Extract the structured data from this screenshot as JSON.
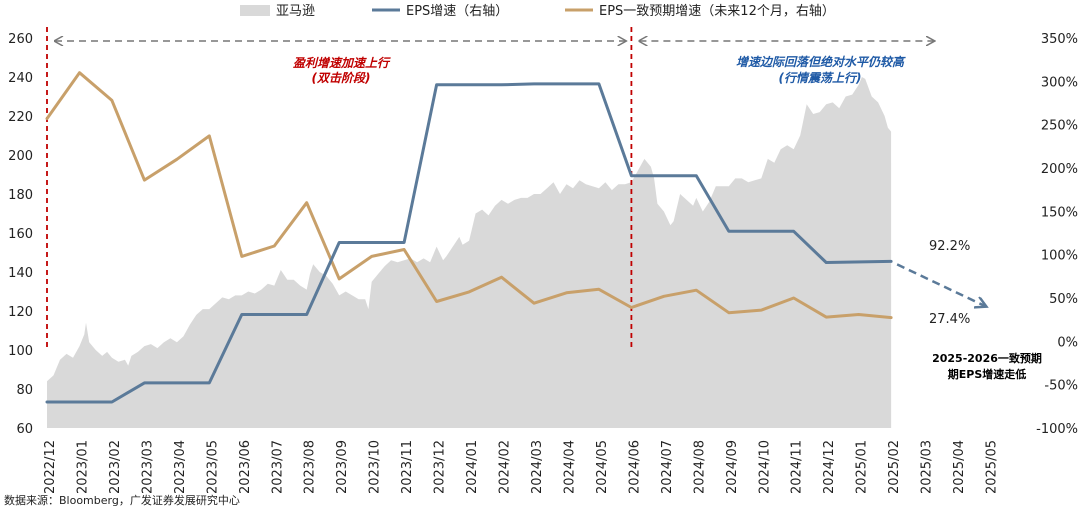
{
  "chart_data": {
    "type": "line",
    "legend": {
      "placement": "top",
      "entries": [
        {
          "name": "亚马逊",
          "kind": "area",
          "color": "#d9d9d9"
        },
        {
          "name": "EPS增速（右轴）",
          "kind": "line",
          "color": "#5b7a99"
        },
        {
          "name": "EPS一致预期增速（未来12个月，右轴）",
          "kind": "line",
          "color": "#c8a06a"
        }
      ]
    },
    "x_labels": [
      "2022/12",
      "2023/01",
      "2023/02",
      "2023/03",
      "2023/04",
      "2023/05",
      "2023/06",
      "2023/07",
      "2023/08",
      "2023/09",
      "2023/10",
      "2023/11",
      "2023/12",
      "2024/01",
      "2024/02",
      "2024/03",
      "2024/04",
      "2024/05",
      "2024/06",
      "2024/07",
      "2024/08",
      "2024/09",
      "2024/10",
      "2024/11",
      "2024/12",
      "2025/01",
      "2025/02",
      "2025/03",
      "2025/04",
      "2025/05"
    ],
    "y_left": {
      "min": 60,
      "max": 260,
      "ticks": [
        60,
        80,
        100,
        120,
        140,
        160,
        180,
        200,
        220,
        240,
        260
      ]
    },
    "y_right": {
      "min": -100,
      "max": 350,
      "ticks": [
        -100,
        -50,
        0,
        50,
        100,
        150,
        200,
        250,
        300,
        350
      ],
      "tick_labels": [
        "-100%",
        "-50%",
        "0%",
        "50%",
        "100%",
        "150%",
        "200%",
        "250%",
        "300%",
        "350%"
      ]
    },
    "price_series": {
      "name": "亚马逊",
      "points": [
        [
          0,
          84
        ],
        [
          0.2,
          87
        ],
        [
          0.4,
          95
        ],
        [
          0.6,
          98
        ],
        [
          0.8,
          96
        ],
        [
          1.0,
          102
        ],
        [
          1.15,
          108
        ],
        [
          1.2,
          114
        ],
        [
          1.3,
          104
        ],
        [
          1.5,
          100
        ],
        [
          1.7,
          97
        ],
        [
          1.85,
          99
        ],
        [
          2.0,
          96
        ],
        [
          2.2,
          94
        ],
        [
          2.4,
          95
        ],
        [
          2.5,
          92
        ],
        [
          2.6,
          97
        ],
        [
          2.8,
          99
        ],
        [
          3.0,
          102
        ],
        [
          3.2,
          103
        ],
        [
          3.4,
          101
        ],
        [
          3.6,
          104
        ],
        [
          3.8,
          106
        ],
        [
          4.0,
          104
        ],
        [
          4.2,
          107
        ],
        [
          4.4,
          113
        ],
        [
          4.6,
          118
        ],
        [
          4.8,
          121
        ],
        [
          5.0,
          121
        ],
        [
          5.2,
          124
        ],
        [
          5.4,
          127
        ],
        [
          5.6,
          126
        ],
        [
          5.8,
          128
        ],
        [
          6.0,
          128
        ],
        [
          6.2,
          130
        ],
        [
          6.4,
          129
        ],
        [
          6.6,
          131
        ],
        [
          6.8,
          134
        ],
        [
          7.0,
          133
        ],
        [
          7.2,
          141
        ],
        [
          7.4,
          136
        ],
        [
          7.6,
          136
        ],
        [
          7.8,
          133
        ],
        [
          8.0,
          131
        ],
        [
          8.1,
          139
        ],
        [
          8.2,
          144
        ],
        [
          8.4,
          140
        ],
        [
          8.6,
          138
        ],
        [
          8.8,
          134
        ],
        [
          9.0,
          128
        ],
        [
          9.2,
          130
        ],
        [
          9.4,
          128
        ],
        [
          9.6,
          126
        ],
        [
          9.8,
          126
        ],
        [
          9.9,
          121
        ],
        [
          10.0,
          135
        ],
        [
          10.2,
          139
        ],
        [
          10.4,
          143
        ],
        [
          10.6,
          146
        ],
        [
          10.8,
          145
        ],
        [
          11.0,
          146
        ],
        [
          11.2,
          147
        ],
        [
          11.4,
          145
        ],
        [
          11.6,
          147
        ],
        [
          11.8,
          145
        ],
        [
          12.0,
          153
        ],
        [
          12.2,
          146
        ],
        [
          12.3,
          148
        ],
        [
          12.5,
          153
        ],
        [
          12.7,
          158
        ],
        [
          12.8,
          154
        ],
        [
          13.0,
          156
        ],
        [
          13.2,
          170
        ],
        [
          13.4,
          172
        ],
        [
          13.6,
          169
        ],
        [
          13.8,
          174
        ],
        [
          14.0,
          177
        ],
        [
          14.2,
          175
        ],
        [
          14.4,
          177
        ],
        [
          14.6,
          178
        ],
        [
          14.8,
          178
        ],
        [
          15.0,
          180
        ],
        [
          15.2,
          180
        ],
        [
          15.4,
          183
        ],
        [
          15.6,
          186
        ],
        [
          15.8,
          180
        ],
        [
          16.0,
          185
        ],
        [
          16.2,
          183
        ],
        [
          16.4,
          187
        ],
        [
          16.6,
          185
        ],
        [
          16.8,
          184
        ],
        [
          17.0,
          183
        ],
        [
          17.2,
          186
        ],
        [
          17.4,
          182
        ],
        [
          17.6,
          185
        ],
        [
          17.8,
          185
        ],
        [
          18.0,
          186
        ],
        [
          18.2,
          192
        ],
        [
          18.4,
          198
        ],
        [
          18.6,
          194
        ],
        [
          18.7,
          188
        ],
        [
          18.8,
          175
        ],
        [
          19.0,
          171
        ],
        [
          19.2,
          164
        ],
        [
          19.3,
          166
        ],
        [
          19.5,
          180
        ],
        [
          19.7,
          177
        ],
        [
          19.9,
          174
        ],
        [
          20.0,
          178
        ],
        [
          20.2,
          171
        ],
        [
          20.4,
          176
        ],
        [
          20.6,
          184
        ],
        [
          20.8,
          184
        ],
        [
          21.0,
          184
        ],
        [
          21.2,
          188
        ],
        [
          21.4,
          188
        ],
        [
          21.6,
          186
        ],
        [
          21.8,
          187
        ],
        [
          22.0,
          188
        ],
        [
          22.2,
          198
        ],
        [
          22.4,
          196
        ],
        [
          22.6,
          203
        ],
        [
          22.8,
          205
        ],
        [
          23.0,
          203
        ],
        [
          23.2,
          210
        ],
        [
          23.4,
          226
        ],
        [
          23.6,
          221
        ],
        [
          23.8,
          222
        ],
        [
          24.0,
          226
        ],
        [
          24.2,
          227
        ],
        [
          24.4,
          224
        ],
        [
          24.6,
          230
        ],
        [
          24.8,
          231
        ],
        [
          25.0,
          236
        ],
        [
          25.1,
          240
        ],
        [
          25.2,
          239
        ],
        [
          25.4,
          230
        ],
        [
          25.6,
          227
        ],
        [
          25.8,
          220
        ],
        [
          25.9,
          214
        ],
        [
          26.0,
          212
        ]
      ]
    },
    "eps_growth_series": {
      "name": "EPS增速（右轴）",
      "points": [
        [
          0,
          -70
        ],
        [
          2,
          -70
        ],
        [
          3,
          -48
        ],
        [
          5,
          -48
        ],
        [
          6,
          31
        ],
        [
          8,
          31
        ],
        [
          9,
          114
        ],
        [
          11,
          114
        ],
        [
          12,
          296
        ],
        [
          14,
          296
        ],
        [
          15,
          297
        ],
        [
          17,
          297
        ],
        [
          18,
          191
        ],
        [
          20,
          191
        ],
        [
          21,
          127
        ],
        [
          23,
          127
        ],
        [
          24,
          91
        ],
        [
          26,
          92.2
        ]
      ]
    },
    "eps_forecast_series": {
      "name": "EPS一致预期增速（未来12个月，右轴）",
      "points": [
        [
          0,
          257
        ],
        [
          1,
          310
        ],
        [
          2,
          278
        ],
        [
          3,
          186
        ],
        [
          4,
          210
        ],
        [
          5,
          237
        ],
        [
          6,
          98
        ],
        [
          7,
          110
        ],
        [
          8,
          160
        ],
        [
          9,
          72
        ],
        [
          10,
          98
        ],
        [
          11,
          106
        ],
        [
          12,
          46
        ],
        [
          13,
          57
        ],
        [
          14,
          74
        ],
        [
          15,
          44
        ],
        [
          16,
          56
        ],
        [
          17,
          60
        ],
        [
          18,
          39
        ],
        [
          19,
          52
        ],
        [
          20,
          59
        ],
        [
          21,
          33
        ],
        [
          22,
          36
        ],
        [
          23,
          50
        ],
        [
          24,
          28
        ],
        [
          25,
          31
        ],
        [
          26,
          27.4
        ]
      ]
    },
    "eps_growth_projection": {
      "points": [
        [
          26,
          92.2
        ],
        [
          29,
          37
        ]
      ],
      "style": "dashed-arrow"
    },
    "end_labels": [
      {
        "series": "eps_growth",
        "text": "92.2%",
        "value": 92.2
      },
      {
        "series": "eps_forecast",
        "text": "27.4%",
        "value": 27.4
      }
    ],
    "phase_markers": [
      {
        "x": 0,
        "color": "#c00000"
      },
      {
        "x": 18,
        "color": "#c00000"
      }
    ],
    "phase_arrows": [
      {
        "from": 0,
        "to": 18
      },
      {
        "from": 18,
        "to": 27.5
      }
    ],
    "annotations": [
      {
        "style": "red",
        "lines": [
          "盈利增速加速上行",
          "(双击阶段)"
        ]
      },
      {
        "style": "blue",
        "lines": [
          "增速边际回落但绝对水平仍较高",
          "(行情震荡上行)"
        ]
      },
      {
        "style": "note",
        "lines": [
          "2025-2026一致预期",
          "期EPS增速走低"
        ]
      }
    ],
    "source": "数据来源：Bloomberg，广发证券发展研究中心"
  }
}
